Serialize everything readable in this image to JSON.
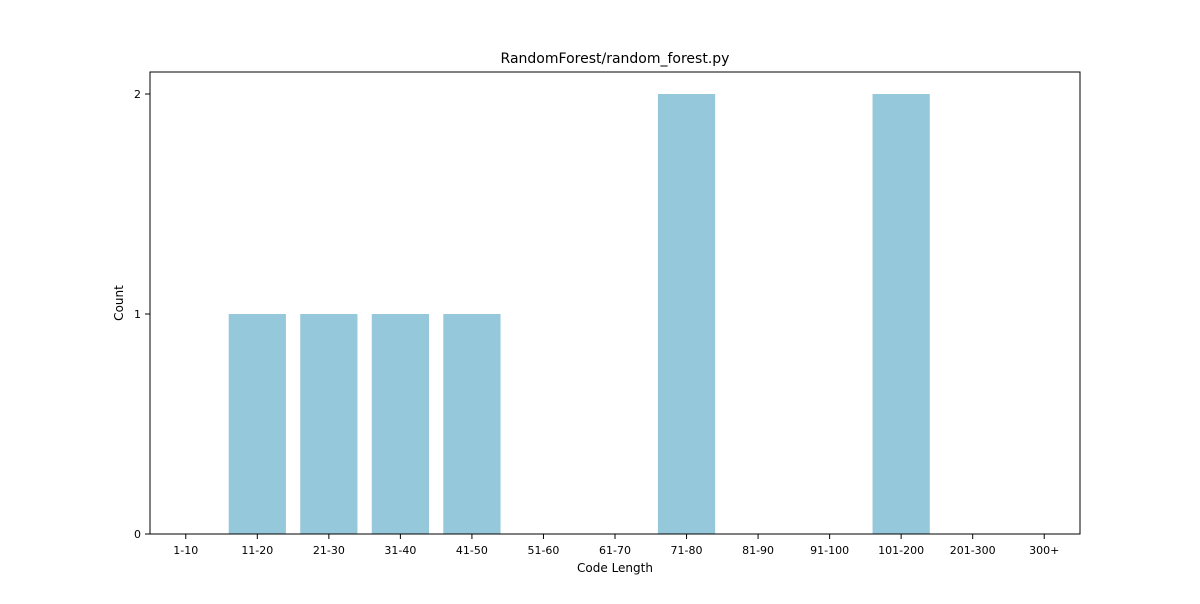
{
  "chart_data": {
    "type": "bar",
    "title": "RandomForest/random_forest.py",
    "xlabel": "Code Length",
    "ylabel": "Count",
    "categories": [
      "1-10",
      "11-20",
      "21-30",
      "31-40",
      "41-50",
      "51-60",
      "61-70",
      "71-80",
      "81-90",
      "91-100",
      "101-200",
      "201-300",
      "300+"
    ],
    "values": [
      0,
      1,
      1,
      1,
      1,
      0,
      0,
      2,
      0,
      0,
      2,
      0,
      0
    ],
    "yticks": [
      "0",
      "1",
      "2"
    ],
    "ylim": [
      0,
      2.1
    ],
    "grid": false,
    "colors": {
      "bar": "#96c8dc",
      "axis": "#000000"
    }
  }
}
